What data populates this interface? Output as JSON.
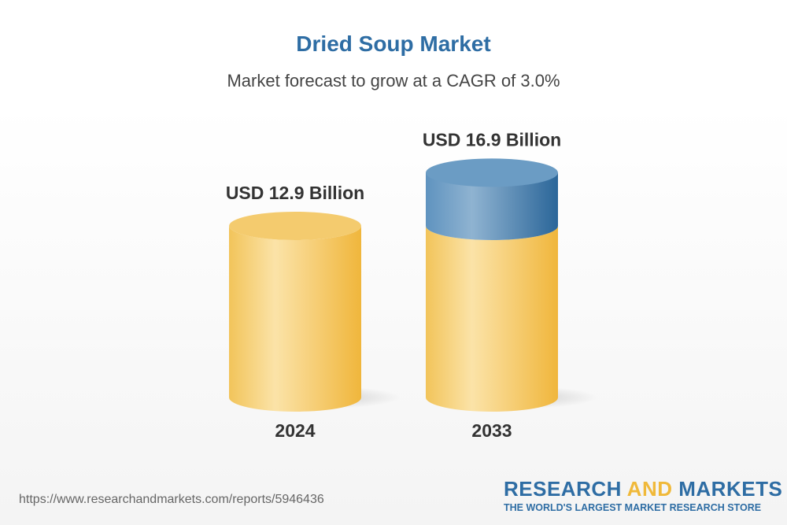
{
  "chart_data": {
    "type": "bar",
    "title": "Dried Soup Market",
    "subtitle": "Market forecast to grow at a CAGR of 3.0%",
    "categories": [
      "2024",
      "2033"
    ],
    "values": [
      12.9,
      16.9
    ],
    "data_labels": [
      "USD 12.9 Billion",
      "USD 16.9 Billion"
    ],
    "style": "3d-cylinder",
    "colors": {
      "base": "#f2c354",
      "growth": "#2e6da4"
    }
  },
  "footer": {
    "url": "https://www.researchandmarkets.com/reports/5946436",
    "logo_part1": "RESEARCH ",
    "logo_part2": "AND",
    "logo_part3": " MARKETS",
    "tagline": "THE WORLD'S LARGEST MARKET RESEARCH STORE"
  }
}
